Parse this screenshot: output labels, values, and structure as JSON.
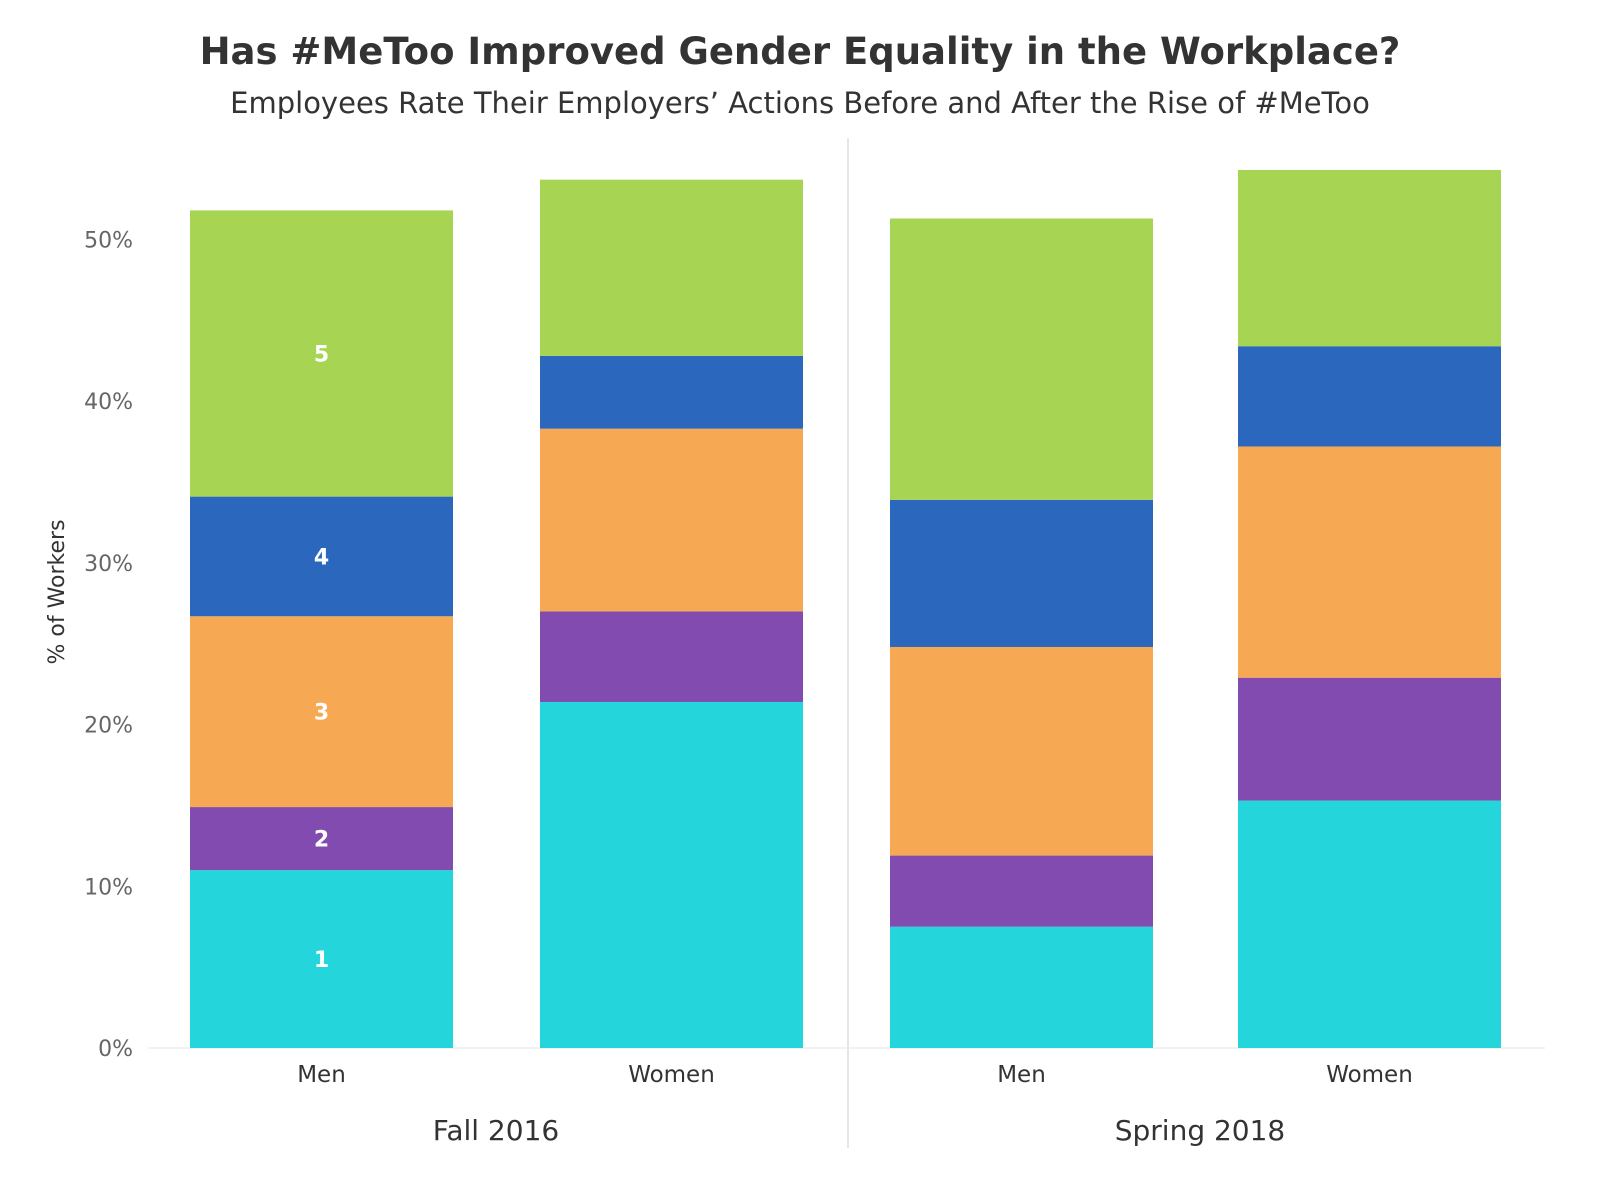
{
  "chart_data": {
    "type": "bar",
    "stacked": true,
    "title": "Has #MeToo Improved Gender Equality in the Workplace?",
    "subtitle": "Employees Rate Their Employers’ Actions Before and After the Rise of #MeToo",
    "ylabel": "% of Workers",
    "ylim": [
      0,
      55
    ],
    "yticks": [
      "0%",
      "10%",
      "20%",
      "30%",
      "40%",
      "50%"
    ],
    "ytick_values": [
      0,
      10,
      20,
      30,
      40,
      50
    ],
    "groups": [
      "Fall 2016",
      "Spring 2018"
    ],
    "categories": [
      "Men",
      "Women",
      "Men",
      "Women"
    ],
    "category_group": [
      0,
      0,
      1,
      1
    ],
    "series": [
      {
        "name": "1",
        "color": "#24D5DC",
        "values": [
          11.0,
          21.4,
          7.5,
          15.3
        ]
      },
      {
        "name": "2",
        "color": "#814BAF",
        "values": [
          3.9,
          5.6,
          4.4,
          7.6
        ]
      },
      {
        "name": "3",
        "color": "#F7A852",
        "values": [
          11.8,
          11.3,
          12.9,
          14.3
        ]
      },
      {
        "name": "4",
        "color": "#2B67BC",
        "values": [
          7.4,
          4.5,
          9.1,
          6.2
        ]
      },
      {
        "name": "5",
        "color": "#A8D453",
        "values": [
          17.7,
          10.9,
          17.4,
          10.9
        ]
      }
    ],
    "segment_labels_on_bar": 0,
    "grid": false,
    "legend": "none"
  }
}
